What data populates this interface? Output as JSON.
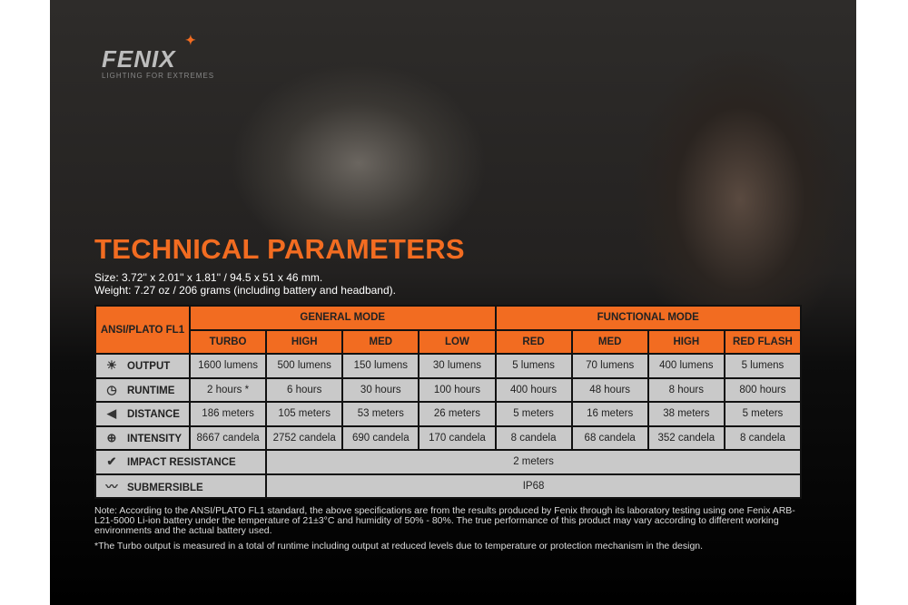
{
  "logo": {
    "brand": "FENIX",
    "tagline": "LIGHTING FOR EXTREMES"
  },
  "title": "TECHNICAL PARAMETERS",
  "size": "Size: 3.72'' x 2.01'' x 1.81'' / 94.5 x 51 x 46 mm.",
  "weight": "Weight: 7.27 oz / 206 grams (including battery and headband).",
  "table": {
    "corner": "ANSI/PLATO FL1",
    "groups": [
      "GENERAL MODE",
      "FUNCTIONAL MODE"
    ],
    "modes": [
      "TURBO",
      "HIGH",
      "MED",
      "LOW",
      "RED",
      "MED",
      "HIGH",
      "RED FLASH"
    ],
    "rows": [
      {
        "label": "OUTPUT",
        "icon": "light-burst-icon",
        "values": [
          "1600 lumens",
          "500 lumens",
          "150 lumens",
          "30 lumens",
          "5 lumens",
          "70 lumens",
          "400 lumens",
          "5 lumens"
        ]
      },
      {
        "label": "RUNTIME",
        "icon": "clock-icon",
        "values": [
          "2 hours *",
          "6 hours",
          "30 hours",
          "100 hours",
          "400 hours",
          "48 hours",
          "8 hours",
          "800 hours"
        ]
      },
      {
        "label": "DISTANCE",
        "icon": "beam-distance-icon",
        "values": [
          "186 meters",
          "105 meters",
          "53 meters",
          "26 meters",
          "5 meters",
          "16 meters",
          "38 meters",
          "5 meters"
        ]
      },
      {
        "label": "INTENSITY",
        "icon": "crosshair-icon",
        "values": [
          "8667 candela",
          "2752 candela",
          "690 candela",
          "170 candela",
          "8 candela",
          "68 candela",
          "352 candela",
          "8 candela"
        ]
      }
    ],
    "impact": {
      "label": "IMPACT RESISTANCE",
      "icon": "impact-icon",
      "value": "2 meters"
    },
    "submersible": {
      "label": "SUBMERSIBLE",
      "icon": "submersible-icon",
      "value": "IP68"
    }
  },
  "note": "Note: According to the ANSI/PLATO FL1 standard, the above specifications are from the results produced by Fenix through its laboratory testing using one Fenix ARB-L21-5000 Li-ion battery under the temperature of 21±3°C and humidity of 50% - 80%. The true performance of this product may vary according to different working environments and the actual battery used.",
  "footnote": "*The Turbo output is measured in a total of runtime including output at reduced levels due to temperature or protection mechanism in the design."
}
